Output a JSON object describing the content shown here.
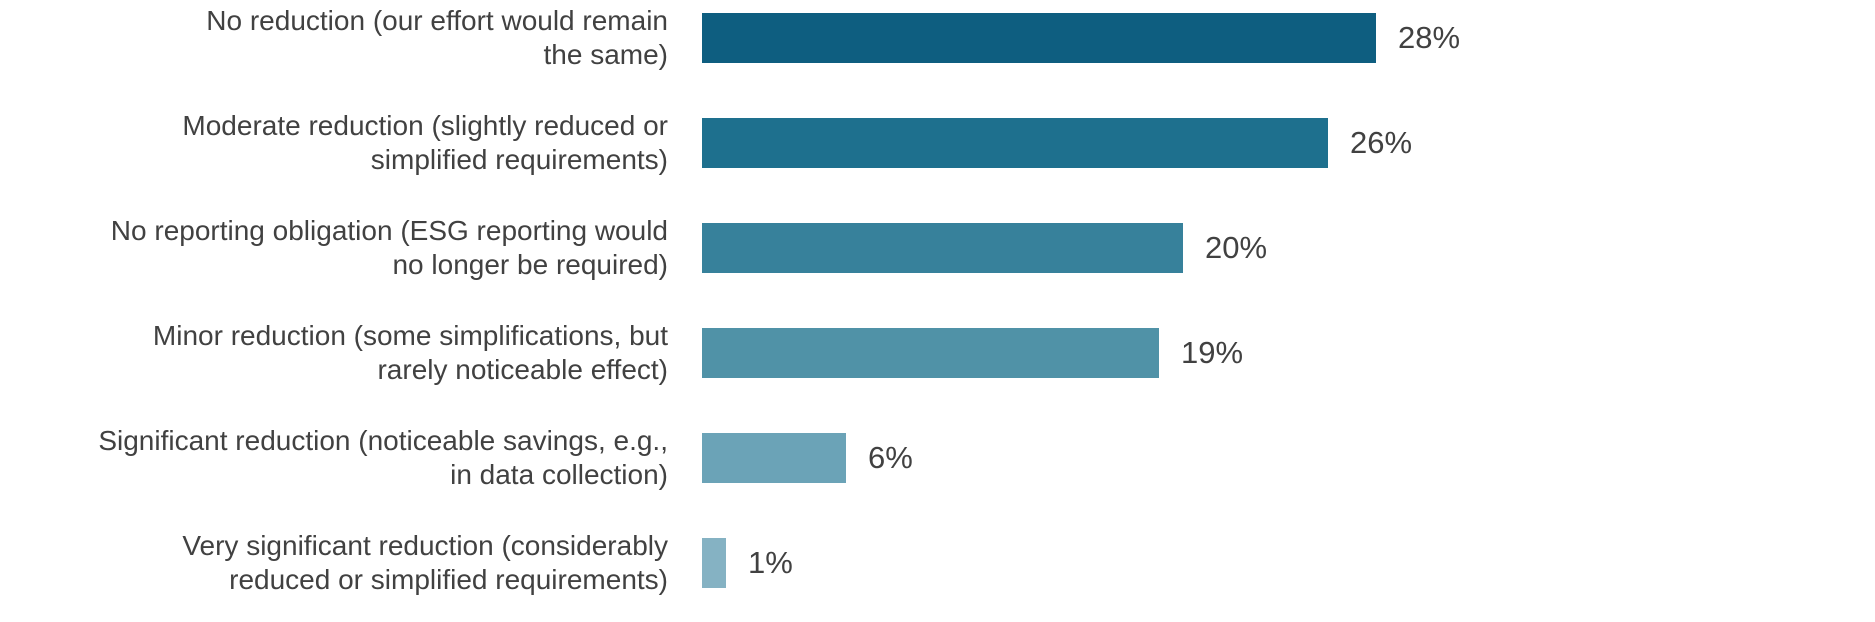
{
  "page": {
    "background_color": "#ffffff",
    "text_color": "#414141"
  },
  "chart_data": {
    "type": "bar",
    "orientation": "horizontal",
    "title": "",
    "categories": [
      "No reduction (our effort would remain\nthe same)",
      "Moderate reduction (slightly reduced or\nsimplified requirements)",
      "No reporting obligation (ESG reporting would\nno longer be required)",
      "Minor reduction (some simplifications, but\nrarely noticeable effect)",
      "Significant reduction (noticeable savings, e.g.,\nin data collection)",
      "Very significant reduction (considerably\nreduced or simplified requirements)"
    ],
    "values": [
      28,
      26,
      20,
      19,
      6,
      1
    ],
    "value_labels": [
      "28%",
      "26%",
      "20%",
      "19%",
      "6%",
      "1%"
    ],
    "unit": "%",
    "xlim": [
      0,
      28
    ],
    "bar_colors": [
      "#0e5e80",
      "#1e708e",
      "#37819b",
      "#5092a7",
      "#6ba3b7",
      "#85b2c3"
    ],
    "text_color": "#414141",
    "grid": false,
    "data_label_position": "outside-end",
    "sorted": "descending"
  }
}
